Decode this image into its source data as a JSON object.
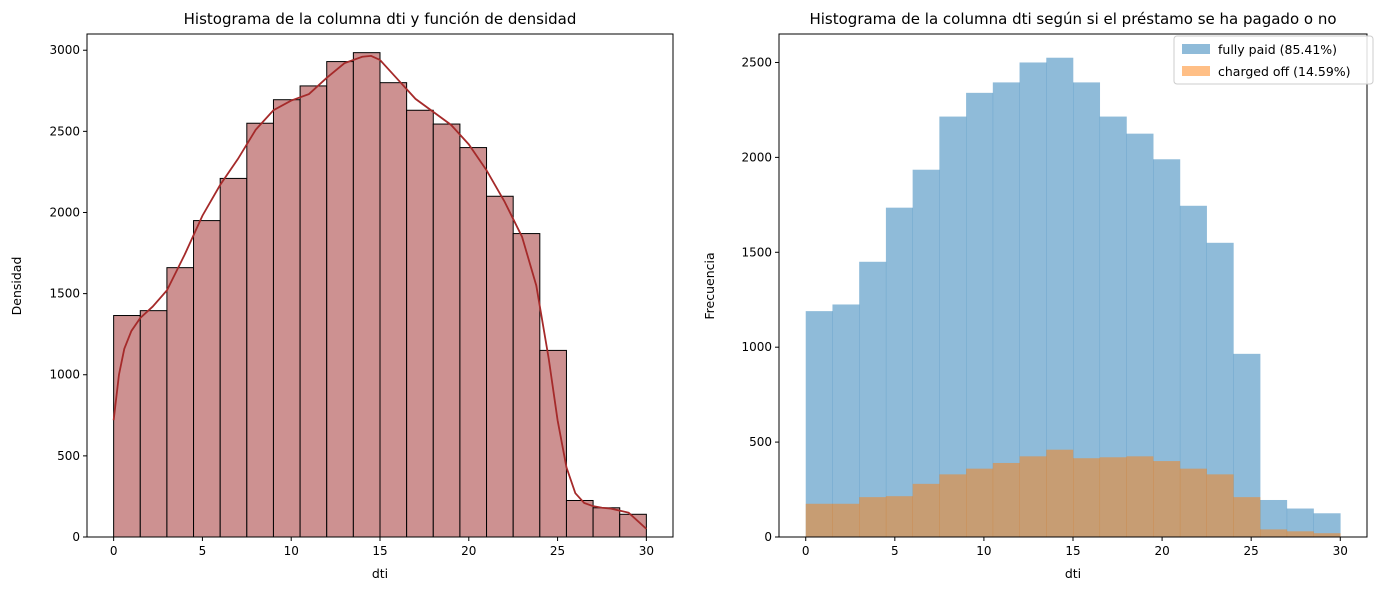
{
  "chart_data": [
    {
      "type": "bar",
      "title": "Histograma de la columna dti y función de densidad",
      "xlabel": "dti",
      "ylabel": "Densidad",
      "xlim": [
        -1.5,
        31.5
      ],
      "ylim": [
        0,
        3100
      ],
      "xticks": [
        0,
        5,
        10,
        15,
        20,
        25,
        30
      ],
      "yticks": [
        0,
        500,
        1000,
        1500,
        2000,
        2500,
        3000
      ],
      "bin_edges": [
        0,
        1.5,
        3,
        4.5,
        6,
        7.5,
        9,
        10.5,
        12,
        13.5,
        15,
        16.5,
        18,
        19.5,
        21,
        22.5,
        24,
        25.5,
        27,
        28.5,
        30
      ],
      "values": [
        1365,
        1395,
        1660,
        1950,
        2210,
        2550,
        2695,
        2780,
        2930,
        2985,
        2800,
        2630,
        2545,
        2400,
        2100,
        1870,
        1150,
        225,
        180,
        140
      ],
      "bar_color": "#cd9191",
      "edge_color": "#000000",
      "kde": {
        "name": "",
        "color": "#a52a2a",
        "x": [
          0,
          0.3,
          0.6,
          1,
          1.5,
          2.2,
          3,
          4,
          5,
          6,
          7,
          8,
          9,
          10,
          11,
          12,
          13,
          14,
          14.5,
          15,
          16,
          17,
          18,
          19,
          20,
          21,
          22,
          23,
          23.8,
          24.5,
          25,
          25.5,
          26,
          26.5,
          27,
          27.5,
          28,
          29,
          30
        ],
        "y": [
          720,
          1000,
          1160,
          1270,
          1350,
          1420,
          1520,
          1740,
          1980,
          2170,
          2330,
          2510,
          2630,
          2690,
          2730,
          2830,
          2920,
          2960,
          2965,
          2940,
          2820,
          2700,
          2620,
          2540,
          2420,
          2260,
          2070,
          1850,
          1550,
          1100,
          720,
          430,
          270,
          210,
          190,
          180,
          175,
          150,
          50
        ]
      }
    },
    {
      "type": "bar",
      "title": "Histograma de la columna dti según si el préstamo se ha pagado o no",
      "xlabel": "dti",
      "ylabel": "Frecuencia",
      "xlim": [
        -1.5,
        31.5
      ],
      "ylim": [
        0,
        2650
      ],
      "xticks": [
        0,
        5,
        10,
        15,
        20,
        25,
        30
      ],
      "yticks": [
        0,
        500,
        1000,
        1500,
        2000,
        2500
      ],
      "bin_edges": [
        0,
        1.5,
        3,
        4.5,
        6,
        7.5,
        9,
        10.5,
        12,
        13.5,
        15,
        16.5,
        18,
        19.5,
        21,
        22.5,
        24,
        25.5,
        27,
        28.5,
        30
      ],
      "legend_position": "top-right",
      "series": [
        {
          "name": "fully paid (85.41%)",
          "color": "#1f77b4",
          "alpha": 0.5,
          "values": [
            1190,
            1225,
            1450,
            1735,
            1935,
            2215,
            2340,
            2395,
            2500,
            2525,
            2395,
            2215,
            2125,
            1990,
            1745,
            1550,
            965,
            195,
            150,
            125
          ]
        },
        {
          "name": "charged off (14.59%)",
          "color": "#ff7f0e",
          "alpha": 0.5,
          "values": [
            175,
            175,
            210,
            215,
            280,
            330,
            360,
            390,
            425,
            460,
            415,
            420,
            425,
            400,
            360,
            330,
            210,
            40,
            30,
            20
          ]
        }
      ]
    }
  ]
}
